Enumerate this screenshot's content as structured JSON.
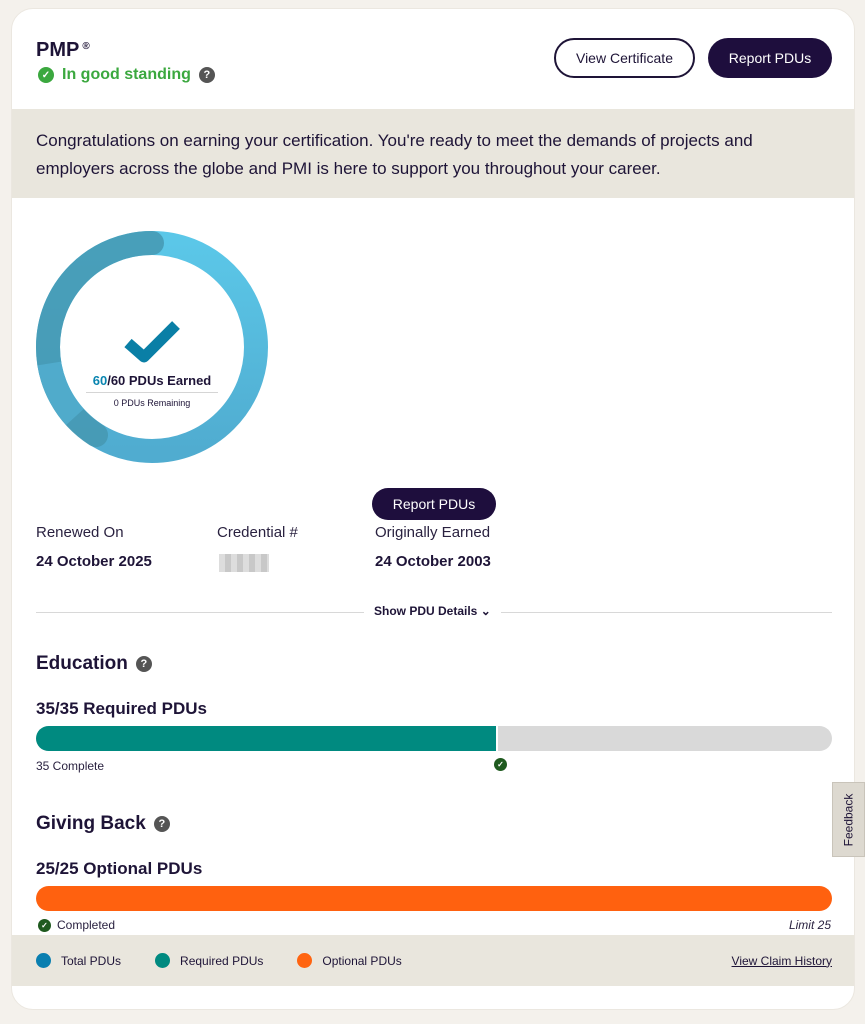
{
  "header": {
    "title": "PMP",
    "registered": "®",
    "status": "In good standing",
    "view_certificate": "View Certificate",
    "report_pdus": "Report PDUs"
  },
  "banner": {
    "text": "Congratulations on earning your certification. You're ready to meet the demands of projects and employers across the globe and PMI is here to support you throughout your career."
  },
  "progress": {
    "earned": "60",
    "total": "/60 PDUs Earned",
    "remaining": "0 PDUs Remaining",
    "fraction": 1.0,
    "report_pdus": "Report PDUs"
  },
  "details": {
    "renewed_label": "Renewed On",
    "renewed_value": "24 October 2025",
    "credential_label": "Credential #",
    "original_label": "Originally Earned",
    "original_value": "24 October 2003",
    "show_details": "Show PDU Details"
  },
  "education": {
    "title": "Education",
    "subtitle": "35/35 Required PDUs",
    "complete": "35 Complete",
    "percent": 58
  },
  "giving_back": {
    "title": "Giving Back",
    "subtitle": "25/25 Optional PDUs",
    "completed": "Completed",
    "limit": "Limit 25",
    "percent": 100
  },
  "legend": {
    "items": [
      {
        "label": "Total PDUs",
        "color": "#0a7fb0"
      },
      {
        "label": "Required PDUs",
        "color": "#008a80"
      },
      {
        "label": "Optional PDUs",
        "color": "#ff6410"
      }
    ],
    "view_history": "View Claim History"
  },
  "feedback": "Feedback",
  "colors": {
    "good": "#3ba83f",
    "required": "#008a80",
    "optional": "#ff610f",
    "ring": "#58c3e5"
  }
}
